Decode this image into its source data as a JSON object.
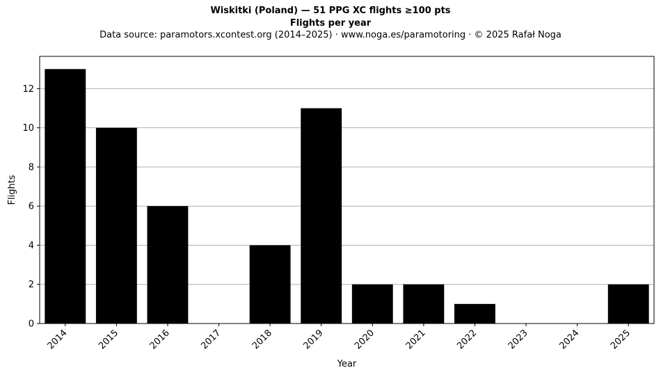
{
  "header": {
    "title": "Wiskitki (Poland)  —  51 PPG XC flights ≥100 pts",
    "subtitle": "Flights per year",
    "source": "Data source: paramotors.xcontest.org (2014–2025)  ·  www.noga.es/paramotoring  ·  © 2025 Rafał Noga"
  },
  "chart_data": {
    "type": "bar",
    "categories": [
      "2014",
      "2015",
      "2016",
      "2017",
      "2018",
      "2019",
      "2020",
      "2021",
      "2022",
      "2023",
      "2024",
      "2025"
    ],
    "values": [
      13,
      10,
      6,
      0,
      4,
      11,
      2,
      2,
      1,
      0,
      0,
      2
    ],
    "title": "Wiskitki (Poland)  —  51 PPG XC flights ≥100 pts",
    "xlabel": "Year",
    "ylabel": "Flights",
    "ylim": [
      0,
      13.65
    ],
    "yticks": [
      0,
      2,
      4,
      6,
      8,
      10,
      12
    ],
    "grid": "horizontal",
    "bar_color": "#000000",
    "grid_color": "#b0b0b0"
  }
}
